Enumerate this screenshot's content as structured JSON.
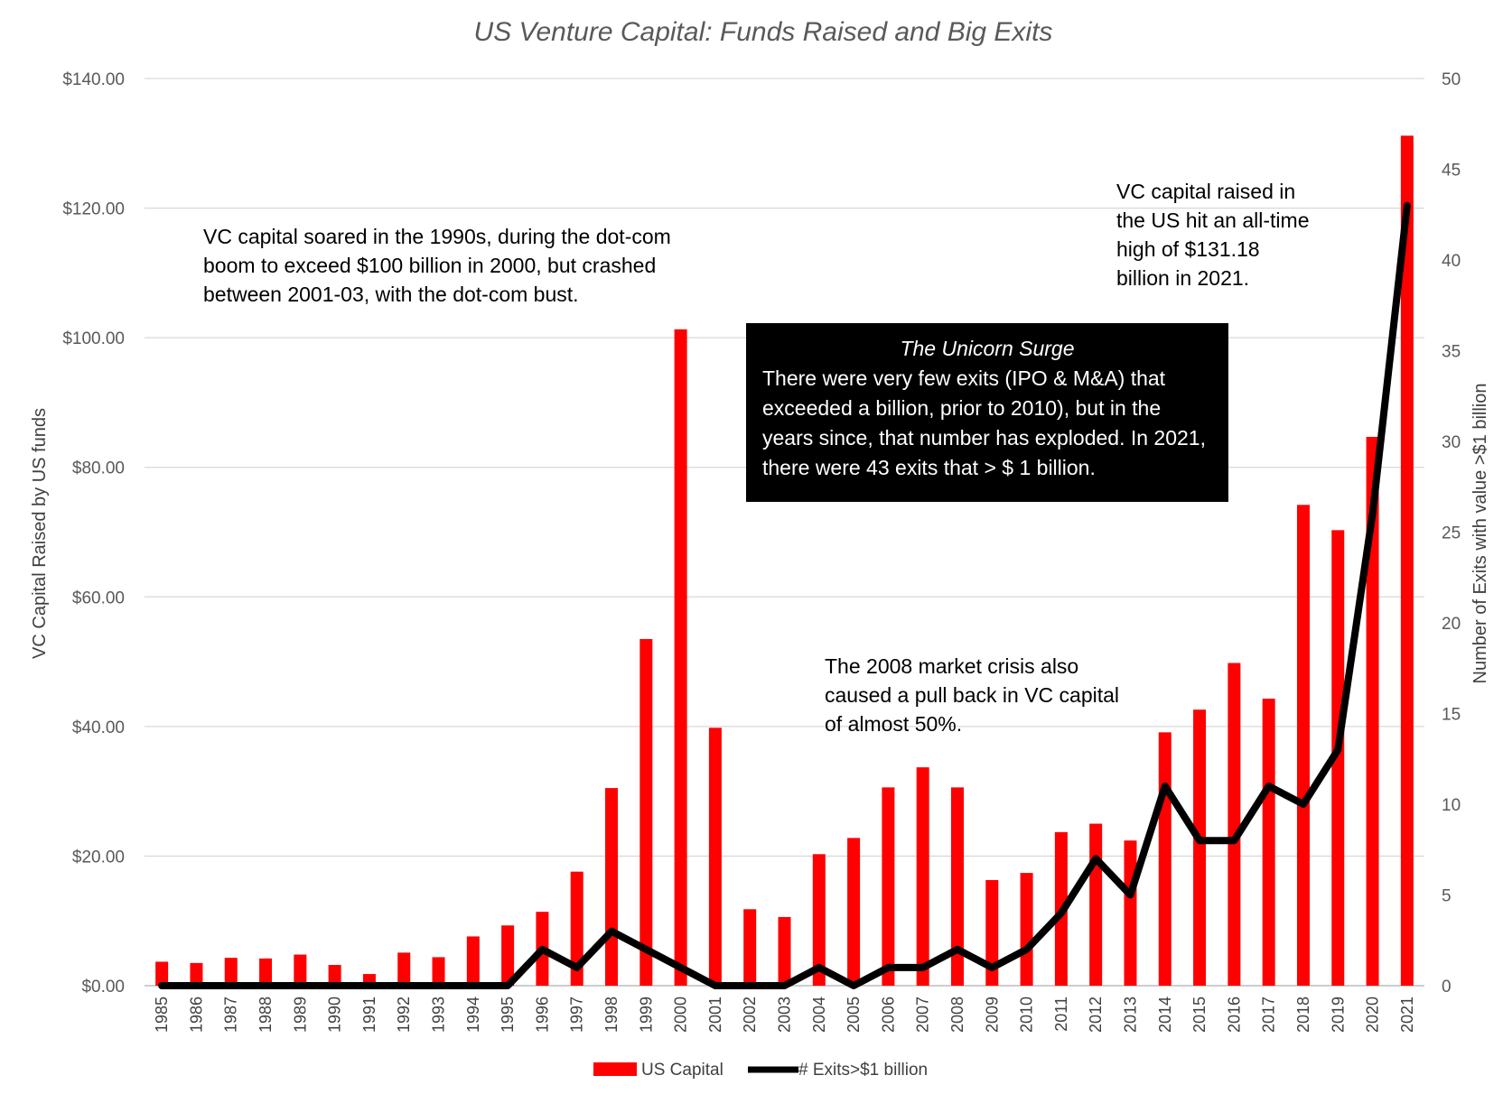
{
  "chart_data": {
    "type": "bar",
    "title": "US Venture Capital: Funds Raised and Big Exits",
    "ylabel": "VC Capital Raised by US funds",
    "y2label": "Number of Exits with value >$1 billion",
    "ylim": [
      0,
      140
    ],
    "y2lim": [
      0,
      50
    ],
    "yticks": [
      "$0.00",
      "$20.00",
      "$40.00",
      "$60.00",
      "$80.00",
      "$100.00",
      "$120.00",
      "$140.00"
    ],
    "y2ticks": [
      "0",
      "5",
      "10",
      "15",
      "20",
      "25",
      "30",
      "35",
      "40",
      "45",
      "50"
    ],
    "grid": true,
    "legend_position": "bottom",
    "categories": [
      "1985",
      "1986",
      "1987",
      "1988",
      "1989",
      "1990",
      "1991",
      "1992",
      "1993",
      "1994",
      "1995",
      "1996",
      "1997",
      "1998",
      "1999",
      "2000",
      "2001",
      "2002",
      "2003",
      "2004",
      "2005",
      "2006",
      "2007",
      "2008",
      "2009",
      "2010",
      "2011",
      "2012",
      "2013",
      "2014",
      "2015",
      "2016",
      "2017",
      "2018",
      "2019",
      "2020",
      "2021"
    ],
    "series": [
      {
        "name": "US Capital",
        "type": "bar",
        "axis": "left",
        "color": "#ff0000",
        "values": [
          3.7,
          3.5,
          4.3,
          4.2,
          4.8,
          3.2,
          1.8,
          5.1,
          4.4,
          7.6,
          9.3,
          11.4,
          17.6,
          30.5,
          53.5,
          101.3,
          39.8,
          11.8,
          10.6,
          20.3,
          22.8,
          30.6,
          33.7,
          30.6,
          16.3,
          17.4,
          23.7,
          25.0,
          22.4,
          39.1,
          42.6,
          49.8,
          44.3,
          74.2,
          70.3,
          84.7,
          131.18
        ]
      },
      {
        "name": "# Exits>$1 billion",
        "type": "line",
        "axis": "right",
        "color": "#000000",
        "values": [
          0,
          0,
          0,
          0,
          0,
          0,
          0,
          0,
          0,
          0,
          0,
          2,
          1,
          3,
          2,
          1,
          0,
          0,
          0,
          1,
          0,
          1,
          1,
          2,
          1,
          2,
          4,
          7,
          5,
          11,
          8,
          8,
          11,
          10,
          13,
          26,
          43
        ]
      }
    ],
    "annotations": {
      "dotcom": "VC capital soared in the 1990s, during the dot-com\nboom to exceed $100 billion in 2000, but crashed\nbetween 2001-03, with the dot-com bust.",
      "alltime": "VC capital raised in\nthe US hit an all-time\nhigh of $131.18\nbillion in 2021.",
      "crisis": "The 2008 market crisis also\ncaused a pull back in VC capital\nof almost 50%.",
      "unicorn_heading": "The Unicorn Surge",
      "unicorn_body": "There were very few exits (IPO & M&A) that exceeded a billion, prior to 2010), but in the years since, that number has exploded. In 2021, there were 43 exits that > $ 1 billion."
    }
  }
}
